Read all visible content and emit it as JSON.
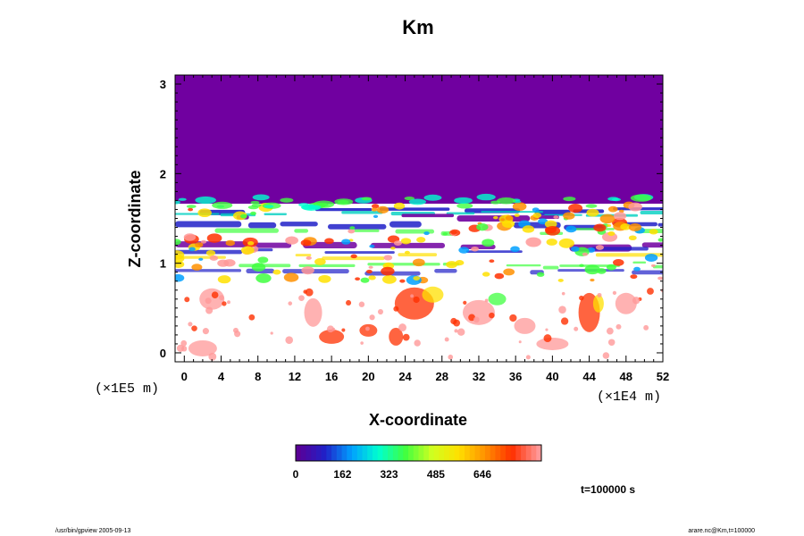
{
  "chart_data": {
    "type": "heatmap",
    "title": "Km",
    "xlabel": "X-coordinate",
    "ylabel": "Z-coordinate",
    "x_ticks": [
      "0",
      "4",
      "8",
      "12",
      "16",
      "20",
      "24",
      "28",
      "32",
      "36",
      "40",
      "44",
      "48",
      "52"
    ],
    "y_ticks": [
      "0",
      "1",
      "2",
      "3"
    ],
    "x_unit": "(×1E4 m)",
    "y_unit": "(×1E5 m)",
    "xlim": [
      -1,
      52
    ],
    "ylim": [
      -0.1,
      3.1
    ],
    "colorbar": {
      "ticks": [
        "0",
        "162",
        "323",
        "485",
        "646"
      ],
      "min": 0,
      "max": 850,
      "colors": [
        "#5a0096",
        "#2020c8",
        "#00a0ff",
        "#00ffd0",
        "#40ff40",
        "#d0ff20",
        "#ffe000",
        "#ff9000",
        "#ff3000",
        "#ff9898"
      ]
    },
    "field": {
      "upper_value_region": "Z > 1.62 (×1E5 m) ≈ 0",
      "dominant_lower_value": "white (above color range)"
    },
    "time_label": "t=100000 s"
  },
  "footer": {
    "left": "/usr/bin/gpview 2005-09-13",
    "right": "arare.nc@Km,t=100000"
  }
}
